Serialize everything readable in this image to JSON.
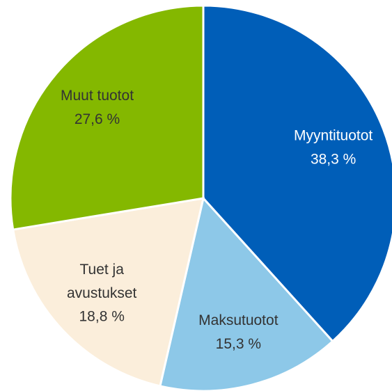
{
  "chart_data": {
    "type": "pie",
    "categories": [
      "Myyntituotot",
      "Maksutuotot",
      "Tuet ja avustukset",
      "Muut tuotot"
    ],
    "values": [
      38.3,
      15.3,
      18.8,
      27.6
    ],
    "value_labels": [
      "38,3 %",
      "15,3 %",
      "18,8 %",
      "27,6 %"
    ],
    "colors": [
      "#005eb8",
      "#8dc8e8",
      "#fbeedb",
      "#84b800"
    ]
  }
}
